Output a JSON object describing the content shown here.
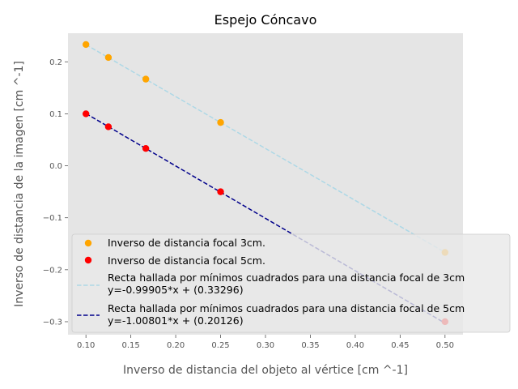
{
  "chart_data": {
    "type": "scatter",
    "title": "Espejo Cóncavo",
    "xlabel": "Inverso de distancia del objeto al vértice [cm ^-1]",
    "ylabel": "Inverso de distancia de la imagen [cm ^-1]",
    "xlim": [
      0.08,
      0.52
    ],
    "ylim": [
      -0.325,
      0.255
    ],
    "xticks": [
      0.1,
      0.15,
      0.2,
      0.25,
      0.3,
      0.35,
      0.4,
      0.45,
      0.5
    ],
    "xtick_labels": [
      "0.10",
      "0.15",
      "0.20",
      "0.25",
      "0.30",
      "0.35",
      "0.40",
      "0.45",
      "0.50"
    ],
    "yticks": [
      -0.3,
      -0.2,
      -0.1,
      0.0,
      0.1,
      0.2
    ],
    "ytick_labels": [
      "−0.3",
      "−0.2",
      "−0.1",
      "0.0",
      "0.1",
      "0.2"
    ],
    "grid": false,
    "background": "#e5e5e5",
    "legend_position": "lower right",
    "series": [
      {
        "name": "Inverso de distancia focal 3cm.",
        "kind": "scatter",
        "color": "#ffa500",
        "x": [
          0.1,
          0.125,
          0.1667,
          0.25,
          0.5
        ],
        "y": [
          0.2333,
          0.2083,
          0.1667,
          0.0833,
          -0.1667
        ]
      },
      {
        "name": "Inverso de distancia focal 5cm.",
        "kind": "scatter",
        "color": "#ff0000",
        "x": [
          0.1,
          0.125,
          0.1667,
          0.25,
          0.5
        ],
        "y": [
          0.1,
          0.075,
          0.0333,
          -0.05,
          -0.3
        ]
      },
      {
        "name": "Recta hallada por mínimos cuadrados para una distancia focal de 3cm\ny=-0.99905*x + (0.33296)",
        "kind": "line",
        "style": "dashed",
        "color": "#add8e6",
        "slope": -0.99905,
        "intercept": 0.33296,
        "x_range": [
          0.1,
          0.5
        ]
      },
      {
        "name": "Recta hallada por mínimos cuadrados para una distancia focal de 5cm\ny=-1.00801*x + (0.20126)",
        "kind": "line",
        "style": "dashed",
        "color": "#00008b",
        "slope": -1.00801,
        "intercept": 0.20126,
        "x_range": [
          0.1,
          0.5
        ]
      }
    ]
  }
}
